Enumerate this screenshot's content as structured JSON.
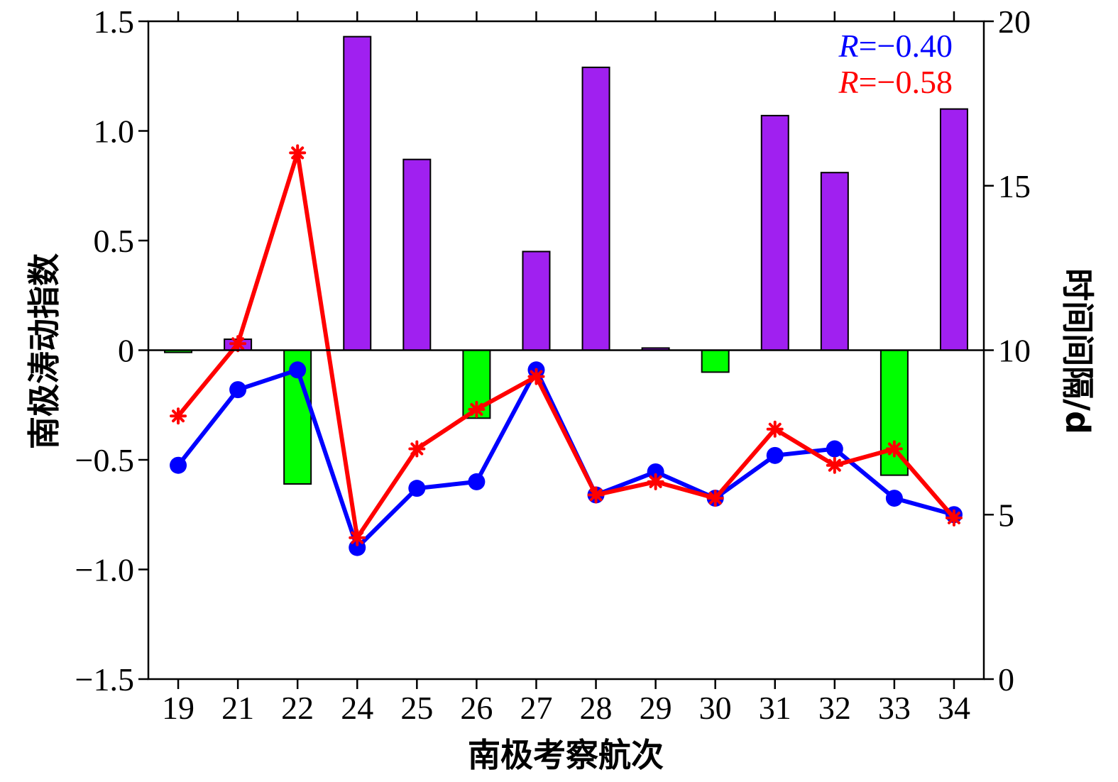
{
  "chart_data": {
    "type": "bar+line",
    "categories": [
      "19",
      "21",
      "22",
      "24",
      "25",
      "26",
      "27",
      "28",
      "29",
      "30",
      "31",
      "32",
      "33",
      "34"
    ],
    "bars": {
      "axis": "left",
      "values": [
        -0.01,
        0.05,
        -0.61,
        1.43,
        0.87,
        -0.31,
        0.45,
        1.29,
        0.01,
        -0.1,
        1.07,
        0.81,
        -0.57,
        1.1
      ],
      "positive_color": "#a020f0",
      "negative_color": "#00ff00"
    },
    "series": [
      {
        "axis": "right",
        "color": "#0000ff",
        "marker": "circle",
        "values": [
          6.5,
          8.8,
          9.4,
          4.0,
          5.8,
          6.0,
          9.4,
          5.6,
          6.3,
          5.5,
          6.8,
          7.0,
          5.5,
          5.0
        ]
      },
      {
        "axis": "right",
        "color": "#ff0000",
        "marker": "asterisk",
        "values": [
          8.0,
          10.2,
          16.0,
          4.3,
          7.0,
          8.2,
          9.2,
          5.6,
          6.0,
          5.5,
          7.6,
          6.5,
          7.0,
          4.9
        ]
      }
    ],
    "y_left": {
      "label": "南极涛动指数",
      "ylim": [
        -1.5,
        1.5
      ],
      "ticks": [
        -1.5,
        -1.0,
        -0.5,
        0,
        0.5,
        1.0,
        1.5
      ],
      "tick_labels": [
        "−1.5",
        "−1.0",
        "−0.5",
        "0",
        "0.5",
        "1.0",
        "1.5"
      ]
    },
    "y_right": {
      "label": "时间间隔/d",
      "ylim": [
        0,
        20
      ],
      "ticks": [
        0,
        5,
        10,
        15,
        20
      ],
      "tick_labels": [
        "0",
        "5",
        "10",
        "15",
        "20"
      ]
    },
    "xlabel": "南极考察航次",
    "annotations": [
      {
        "italic": "R",
        "text": "=−0.40",
        "color": "#0000ff"
      },
      {
        "italic": "R",
        "text": "=−0.58",
        "color": "#ff0000"
      }
    ],
    "grid": false
  }
}
